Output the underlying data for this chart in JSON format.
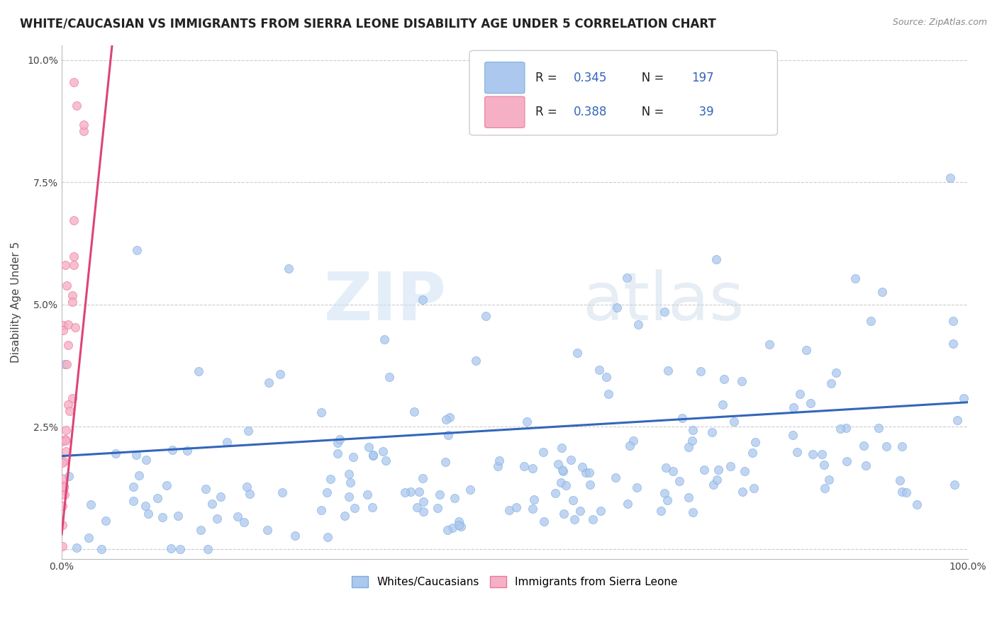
{
  "title": "WHITE/CAUCASIAN VS IMMIGRANTS FROM SIERRA LEONE DISABILITY AGE UNDER 5 CORRELATION CHART",
  "source": "Source: ZipAtlas.com",
  "ylabel": "Disability Age Under 5",
  "xlim": [
    0,
    1.0
  ],
  "ylim": [
    -0.002,
    0.103
  ],
  "yticks": [
    0.0,
    0.025,
    0.05,
    0.075,
    0.1
  ],
  "yticklabels": [
    "",
    "2.5%",
    "5.0%",
    "7.5%",
    "10.0%"
  ],
  "blue_color": "#adc8ee",
  "blue_edge": "#7aaee0",
  "pink_color": "#f5b0c5",
  "pink_edge": "#e87a9a",
  "blue_line_color": "#3366bb",
  "pink_line_color": "#dd4477",
  "R_blue": 0.345,
  "N_blue": 197,
  "R_pink": 0.388,
  "N_pink": 39,
  "blue_slope": 0.011,
  "blue_intercept": 0.019,
  "pink_slope": 1.8,
  "pink_intercept": 0.003,
  "watermark_zip": "ZIP",
  "watermark_atlas": "atlas",
  "title_fontsize": 12,
  "label_fontsize": 11,
  "tick_fontsize": 10,
  "legend_fontsize": 12,
  "marker_size": 75,
  "grid_color": "#cccccc"
}
